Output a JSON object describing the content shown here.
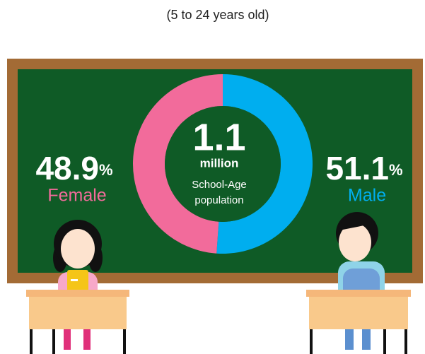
{
  "chart_data": {
    "type": "donut",
    "subtitle": "(5 to 24 years old)",
    "categories": [
      "Male",
      "Female"
    ],
    "values": [
      51.1,
      48.9
    ],
    "value_labels": [
      "51.1%",
      "48.9%"
    ],
    "colors": [
      "#00aeef",
      "#f26b9b"
    ],
    "center_value": "1.1",
    "center_unit": "million",
    "center_caption": [
      "School-Age",
      "population"
    ]
  }
}
